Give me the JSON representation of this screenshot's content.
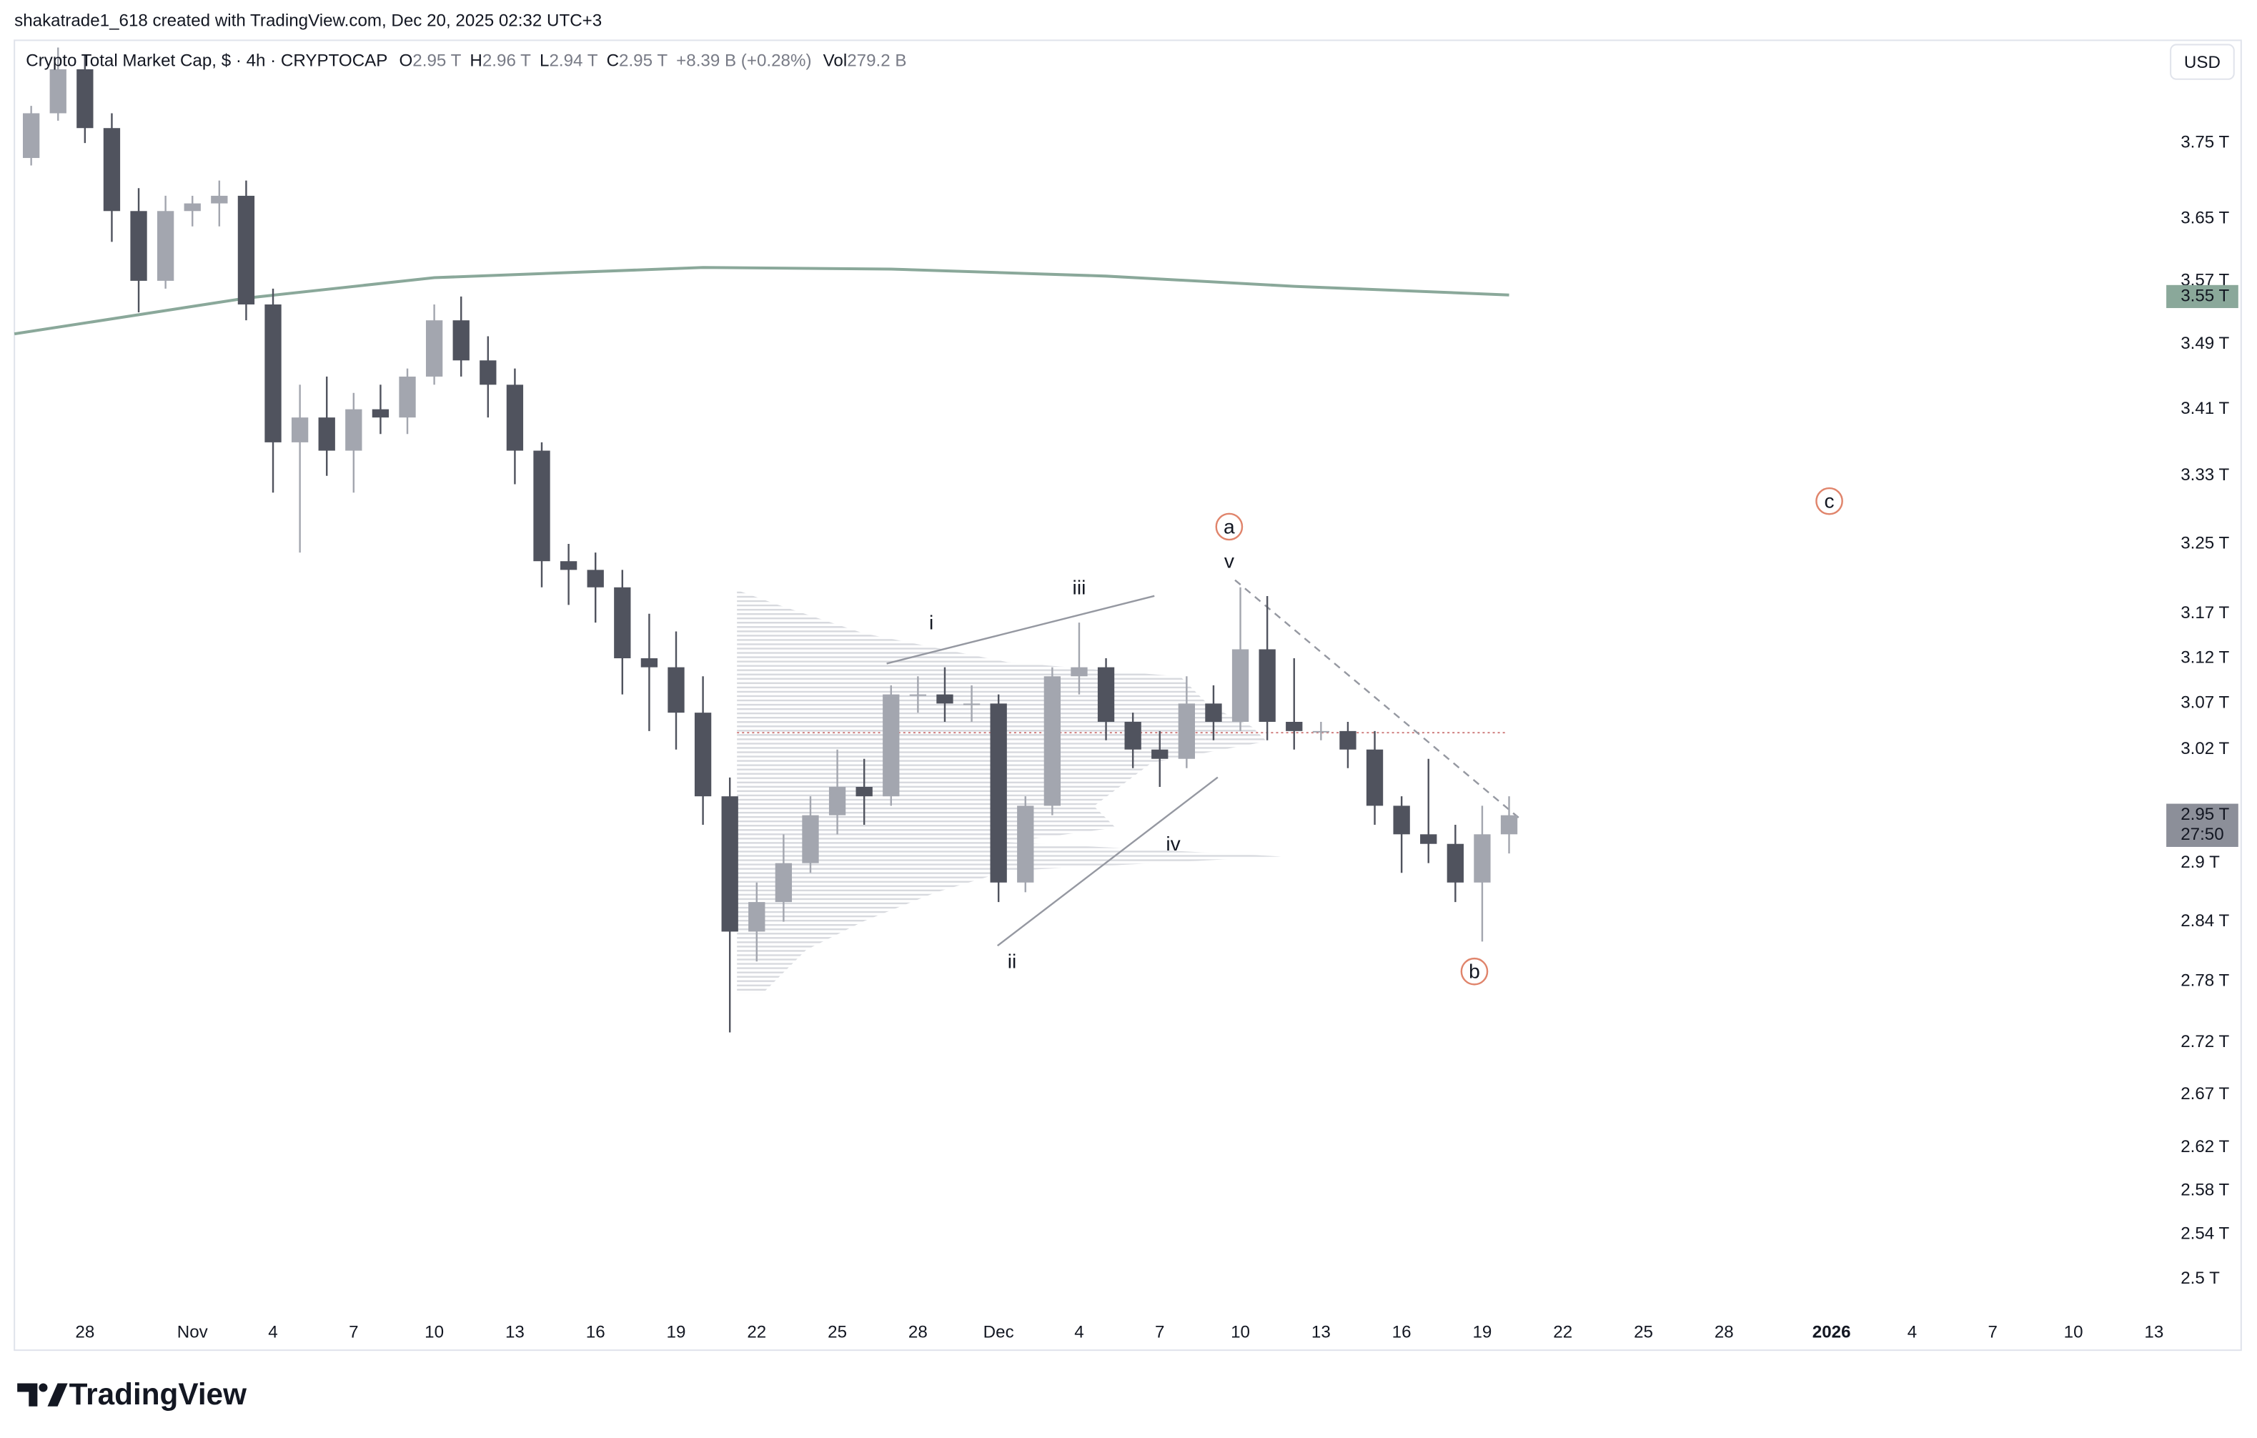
{
  "header": {
    "attribution": "shakatrade1_618 created with TradingView.com, Dec 20, 2025 02:32 UTC+3",
    "symbol": "Crypto Total Market Cap, $ · 4h · CRYPTOCAP",
    "ohlc": [
      {
        "key": "O",
        "value": "2.95 T"
      },
      {
        "key": "H",
        "value": "2.96 T"
      },
      {
        "key": "L",
        "value": "2.94 T"
      },
      {
        "key": "C",
        "value": "2.95 T"
      }
    ],
    "change": "+8.39 B (+0.28%)",
    "volume": {
      "key": "Vol",
      "value": "279.2 B"
    },
    "currency": "USD"
  },
  "chart_data": {
    "type": "candlestick",
    "log_scale": true,
    "up_color": "#a3a6af",
    "down_color": "#50535e",
    "x": [
      "2025-10-26",
      "2025-10-27",
      "2025-10-28",
      "2025-10-29",
      "2025-10-30",
      "2025-10-31",
      "2025-11-01",
      "2025-11-02",
      "2025-11-03",
      "2025-11-04",
      "2025-11-05",
      "2025-11-06",
      "2025-11-07",
      "2025-11-08",
      "2025-11-09",
      "2025-11-10",
      "2025-11-11",
      "2025-11-12",
      "2025-11-13",
      "2025-11-14",
      "2025-11-15",
      "2025-11-16",
      "2025-11-17",
      "2025-11-18",
      "2025-11-19",
      "2025-11-20",
      "2025-11-21",
      "2025-11-22",
      "2025-11-23",
      "2025-11-24",
      "2025-11-25",
      "2025-11-26",
      "2025-11-27",
      "2025-11-28",
      "2025-11-29",
      "2025-11-30",
      "2025-12-01",
      "2025-12-02",
      "2025-12-03",
      "2025-12-04",
      "2025-12-05",
      "2025-12-06",
      "2025-12-07",
      "2025-12-08",
      "2025-12-09",
      "2025-12-10",
      "2025-12-11",
      "2025-12-12",
      "2025-12-13",
      "2025-12-14",
      "2025-12-15",
      "2025-12-16",
      "2025-12-17",
      "2025-12-18",
      "2025-12-19",
      "2025-12-20"
    ],
    "open": [
      3.73,
      3.79,
      3.85,
      3.77,
      3.66,
      3.57,
      3.66,
      3.67,
      3.68,
      3.54,
      3.37,
      3.4,
      3.36,
      3.41,
      3.4,
      3.45,
      3.52,
      3.47,
      3.44,
      3.36,
      3.23,
      3.22,
      3.2,
      3.12,
      3.11,
      3.06,
      2.97,
      2.83,
      2.86,
      2.9,
      2.95,
      2.98,
      2.97,
      3.08,
      3.08,
      3.07,
      3.07,
      2.88,
      2.96,
      3.1,
      3.11,
      3.05,
      3.02,
      3.01,
      3.07,
      3.05,
      3.13,
      3.05,
      3.04,
      3.04,
      3.02,
      2.96,
      2.93,
      2.92,
      2.88,
      2.93
    ],
    "high": [
      3.8,
      3.88,
      3.87,
      3.79,
      3.69,
      3.68,
      3.68,
      3.7,
      3.7,
      3.56,
      3.44,
      3.45,
      3.43,
      3.44,
      3.46,
      3.54,
      3.55,
      3.5,
      3.46,
      3.37,
      3.25,
      3.24,
      3.22,
      3.17,
      3.15,
      3.1,
      2.99,
      2.88,
      2.93,
      2.97,
      3.02,
      3.01,
      3.09,
      3.1,
      3.11,
      3.09,
      3.08,
      2.97,
      3.11,
      3.16,
      3.12,
      3.06,
      3.04,
      3.1,
      3.09,
      3.2,
      3.19,
      3.12,
      3.05,
      3.05,
      3.04,
      2.97,
      3.01,
      2.94,
      2.96,
      2.97
    ],
    "low": [
      3.72,
      3.78,
      3.75,
      3.62,
      3.53,
      3.56,
      3.64,
      3.64,
      3.52,
      3.31,
      3.24,
      3.33,
      3.31,
      3.38,
      3.38,
      3.44,
      3.45,
      3.4,
      3.32,
      3.2,
      3.18,
      3.16,
      3.08,
      3.04,
      3.02,
      2.94,
      2.73,
      2.8,
      2.84,
      2.89,
      2.93,
      2.94,
      2.96,
      3.06,
      3.05,
      3.05,
      2.86,
      2.87,
      2.95,
      3.08,
      3.03,
      3.0,
      2.98,
      3.0,
      3.03,
      3.04,
      3.03,
      3.02,
      3.03,
      3.0,
      2.94,
      2.89,
      2.9,
      2.86,
      2.82,
      2.91
    ],
    "close": [
      3.79,
      3.85,
      3.77,
      3.66,
      3.57,
      3.66,
      3.67,
      3.68,
      3.54,
      3.37,
      3.4,
      3.36,
      3.41,
      3.4,
      3.45,
      3.52,
      3.47,
      3.44,
      3.36,
      3.23,
      3.22,
      3.2,
      3.12,
      3.11,
      3.06,
      2.97,
      2.83,
      2.86,
      2.9,
      2.95,
      2.98,
      2.97,
      3.08,
      3.08,
      3.07,
      3.07,
      2.88,
      2.96,
      3.1,
      3.11,
      3.05,
      3.02,
      3.01,
      3.07,
      3.05,
      3.13,
      3.05,
      3.04,
      3.04,
      3.02,
      2.96,
      2.93,
      2.92,
      2.88,
      2.93,
      2.95
    ],
    "xlim": [
      "2025-10-25T09:00:00Z",
      "2026-01-13T11:00:00Z"
    ],
    "xticks": [
      {
        "value": "2025-10-28",
        "label": "28"
      },
      {
        "value": "2025-11-01",
        "label": "Nov"
      },
      {
        "value": "2025-11-04",
        "label": "4"
      },
      {
        "value": "2025-11-07",
        "label": "7"
      },
      {
        "value": "2025-11-10",
        "label": "10"
      },
      {
        "value": "2025-11-13",
        "label": "13"
      },
      {
        "value": "2025-11-16",
        "label": "16"
      },
      {
        "value": "2025-11-19",
        "label": "19"
      },
      {
        "value": "2025-11-22",
        "label": "22"
      },
      {
        "value": "2025-11-25",
        "label": "25"
      },
      {
        "value": "2025-11-28",
        "label": "28"
      },
      {
        "value": "2025-12-01",
        "label": "Dec"
      },
      {
        "value": "2025-12-04",
        "label": "4"
      },
      {
        "value": "2025-12-07",
        "label": "7"
      },
      {
        "value": "2025-12-10",
        "label": "10"
      },
      {
        "value": "2025-12-13",
        "label": "13"
      },
      {
        "value": "2025-12-16",
        "label": "16"
      },
      {
        "value": "2025-12-19",
        "label": "19"
      },
      {
        "value": "2025-12-22",
        "label": "22"
      },
      {
        "value": "2025-12-25",
        "label": "25"
      },
      {
        "value": "2025-12-28",
        "label": "28"
      },
      {
        "value": "2026-01-01",
        "label": "2026"
      },
      {
        "value": "2026-01-04",
        "label": "4"
      },
      {
        "value": "2026-01-07",
        "label": "7"
      },
      {
        "value": "2026-01-10",
        "label": "10"
      },
      {
        "value": "2026-01-13",
        "label": "13"
      }
    ],
    "ylim": [
      2.47,
      3.89
    ],
    "yticks": [
      {
        "value": 3.75,
        "label": "3.75 T"
      },
      {
        "value": 3.65,
        "label": "3.65 T"
      },
      {
        "value": 3.57,
        "label": "3.57 T"
      },
      {
        "value": 3.49,
        "label": "3.49 T"
      },
      {
        "value": 3.41,
        "label": "3.41 T"
      },
      {
        "value": 3.33,
        "label": "3.33 T"
      },
      {
        "value": 3.25,
        "label": "3.25 T"
      },
      {
        "value": 3.17,
        "label": "3.17 T"
      },
      {
        "value": 3.12,
        "label": "3.12 T"
      },
      {
        "value": 3.07,
        "label": "3.07 T"
      },
      {
        "value": 3.02,
        "label": "3.02 T"
      },
      {
        "value": 2.9,
        "label": "2.9 T"
      },
      {
        "value": 2.84,
        "label": "2.84 T"
      },
      {
        "value": 2.78,
        "label": "2.78 T"
      },
      {
        "value": 2.72,
        "label": "2.72 T"
      },
      {
        "value": 2.67,
        "label": "2.67 T"
      },
      {
        "value": 2.62,
        "label": "2.62 T"
      },
      {
        "value": 2.58,
        "label": "2.58 T"
      },
      {
        "value": 2.54,
        "label": "2.54 T"
      },
      {
        "value": 2.5,
        "label": "2.5 T"
      }
    ],
    "moving_average": {
      "color": "#8aa89a",
      "x": [
        "2025-10-25T09:00:00Z",
        "2025-11-03",
        "2025-11-10",
        "2025-11-20",
        "2025-11-27",
        "2025-12-05",
        "2025-12-12",
        "2025-12-20"
      ],
      "values": [
        3.503,
        3.548,
        3.574,
        3.587,
        3.585,
        3.576,
        3.563,
        3.552
      ]
    },
    "price_tags": [
      {
        "value": 3.55,
        "label": "3.55 T",
        "color": "#8aa89a",
        "text_color": "#131722"
      },
      {
        "value": 2.95,
        "label": "2.95 T",
        "countdown": "27:50",
        "color": "#8c8f99",
        "text_color": "#ffffff"
      }
    ],
    "annotations": [
      {
        "text": "a",
        "x": "2025-12-09T14:00:00Z",
        "y": 3.27,
        "style": "circle",
        "color": "#e0846b"
      },
      {
        "text": "b",
        "x": "2025-12-18T17:00:00Z",
        "y": 2.79,
        "style": "circle",
        "color": "#e0846b"
      },
      {
        "text": "c",
        "x": "2025-12-31T22:00:00Z",
        "y": 3.3,
        "style": "circle",
        "color": "#e0846b"
      },
      {
        "text": "i",
        "x": "2025-11-28T12:00:00Z",
        "y": 3.16,
        "style": "plain",
        "color": "#9598a1"
      },
      {
        "text": "ii",
        "x": "2025-12-01T12:00:00Z",
        "y": 2.8,
        "style": "plain",
        "color": "#9598a1"
      },
      {
        "text": "iii",
        "x": "2025-12-04T00:00:00Z",
        "y": 3.2,
        "style": "plain",
        "color": "#9598a1"
      },
      {
        "text": "iv",
        "x": "2025-12-07T12:00:00Z",
        "y": 2.92,
        "style": "plain",
        "color": "#9598a1"
      },
      {
        "text": "v",
        "x": "2025-12-09T14:00:00Z",
        "y": 3.23,
        "style": "plain",
        "color": "#9598a1"
      }
    ]
  },
  "footer": {
    "brand": "TradingView"
  }
}
